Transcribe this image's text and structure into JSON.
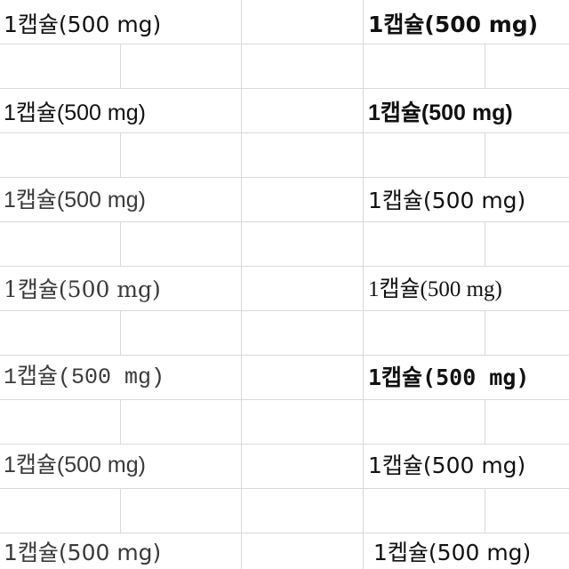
{
  "sheet": {
    "rows": [
      {
        "left": "1캡슐(500 mg)",
        "right": "1캡슐(500 mg)"
      },
      {
        "left": "1캡슐(500 mg)",
        "right": "1캡슐(500 mg)"
      },
      {
        "left": "1캡슐(500 mg)",
        "right": "1캡슐(500 mg)"
      },
      {
        "left": "1캡슐(500 mg)",
        "right": "1캡슐(500 mg)"
      },
      {
        "left": "1캡슐(500 mg)",
        "right": "1캡슐(500 mg)"
      },
      {
        "left": "1캡슐(500 mg)",
        "right": "1캡슐(500 mg)"
      },
      {
        "left": "1캡슐(500 mg)",
        "right": "1켑슐(500 mg)"
      }
    ]
  }
}
